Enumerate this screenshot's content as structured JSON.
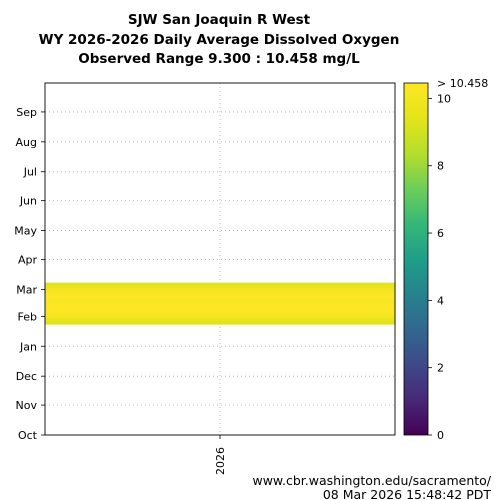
{
  "chart_data": {
    "type": "heatmap",
    "title_lines": [
      "SJW San Joaquin R West",
      "WY 2026-2026 Daily Average Dissolved Oxygen",
      "Observed Range 9.300 : 10.458 mg/L"
    ],
    "xlabel": "",
    "ylabel": "",
    "x_categories": [
      "2026"
    ],
    "y_categories": [
      "Oct",
      "Nov",
      "Dec",
      "Jan",
      "Feb",
      "Mar",
      "Apr",
      "May",
      "Jun",
      "Jul",
      "Aug",
      "Sep"
    ],
    "data_period": {
      "start": "2026-01-24",
      "end": "2026-03-08"
    },
    "data_value_range": [
      9.3,
      10.458
    ],
    "daily_pattern": [
      9.3,
      9.6,
      9.9,
      10.1,
      10.3,
      10.4,
      10.458,
      10.4,
      10.3,
      10.2,
      10.35,
      10.45,
      10.3,
      10.1,
      9.9,
      9.6,
      9.4
    ],
    "colorbar": {
      "colormap": "viridis",
      "min": 0,
      "max": 10.458,
      "ticks": [
        0,
        2,
        4,
        6,
        8,
        10
      ],
      "tick_labels": [
        "0",
        "2",
        "4",
        "6",
        "8",
        "10"
      ],
      "top_label": "> 10.458"
    },
    "grid": true
  },
  "footer": {
    "url": "www.cbr.washington.edu/sacramento/",
    "timestamp": "08 Mar 2026 15:48:42 PDT"
  }
}
